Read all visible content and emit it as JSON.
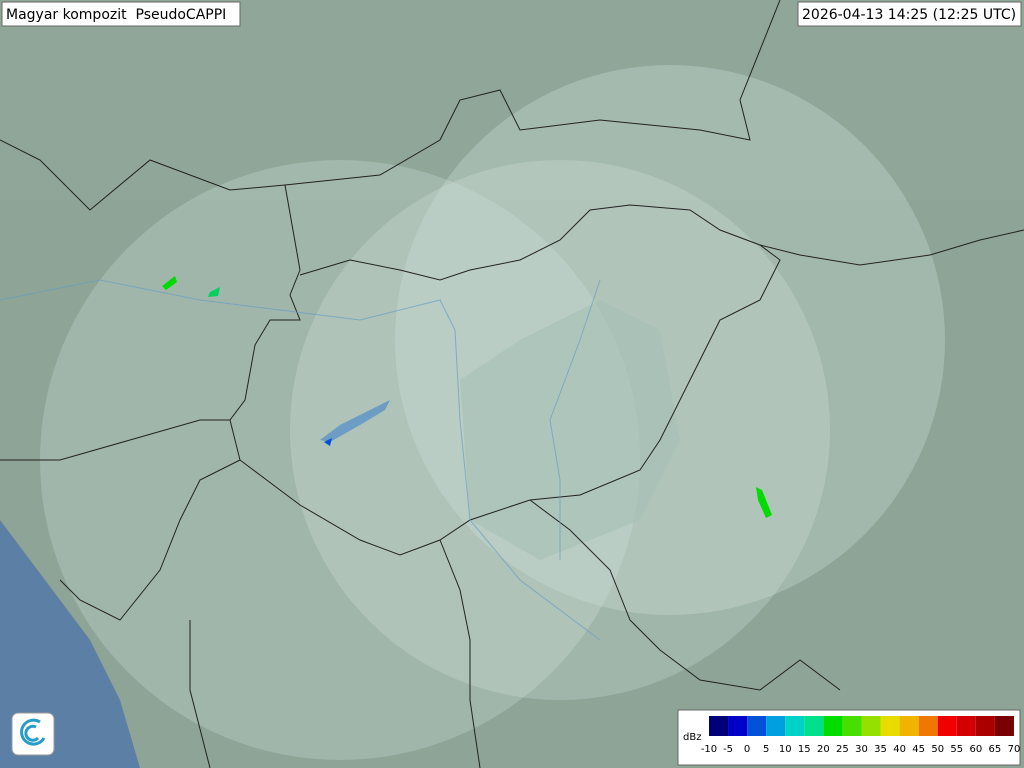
{
  "header": {
    "title": "Magyar kompozit  PseudoCAPPI",
    "timestamp": "2026-04-13 14:25 (12:25 UTC)"
  },
  "legend": {
    "unit": "dBz",
    "ticks": [
      -10,
      -5,
      0,
      5,
      10,
      15,
      20,
      25,
      30,
      35,
      40,
      45,
      50,
      55,
      60,
      65,
      70
    ],
    "colors": [
      "#000078",
      "#0000c8",
      "#0050d8",
      "#00a0e0",
      "#00d2c8",
      "#00e08c",
      "#00dc00",
      "#46e000",
      "#96e000",
      "#e6dc00",
      "#f0b400",
      "#f07800",
      "#f00000",
      "#d20000",
      "#aa0000",
      "#780000"
    ]
  }
}
